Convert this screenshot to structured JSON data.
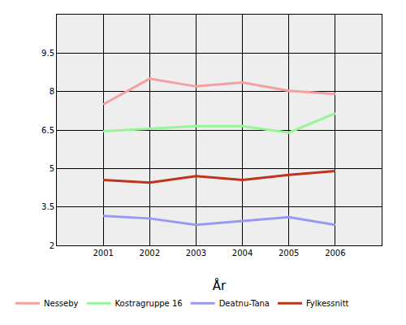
{
  "chart_data": {
    "type": "line",
    "x_label": "År",
    "x": [
      2001,
      2002,
      2003,
      2004,
      2005,
      2006
    ],
    "xlim": [
      2000,
      2007
    ],
    "xticks": [
      2001,
      2002,
      2003,
      2004,
      2005,
      2006
    ],
    "ylim": [
      2,
      11
    ],
    "yticks": [
      2,
      3.5,
      5,
      6.5,
      8,
      9.5
    ],
    "grid": true,
    "legend": "bottom",
    "series": [
      {
        "name": "Nesseby",
        "color": "#f4a0a0",
        "values": [
          7.5,
          8.5,
          8.2,
          8.35,
          8.03,
          7.9
        ]
      },
      {
        "name": "Kostragruppe 16",
        "color": "#99f599",
        "values": [
          6.45,
          6.55,
          6.65,
          6.65,
          6.4,
          7.15
        ]
      },
      {
        "name": "Deatnu-Tana",
        "color": "#9999f5",
        "values": [
          3.15,
          3.05,
          2.8,
          2.95,
          3.1,
          2.8
        ]
      },
      {
        "name": "Fylkessnitt",
        "color": "#c0341d",
        "values": [
          4.55,
          4.45,
          4.7,
          4.55,
          4.75,
          4.9
        ]
      }
    ]
  }
}
